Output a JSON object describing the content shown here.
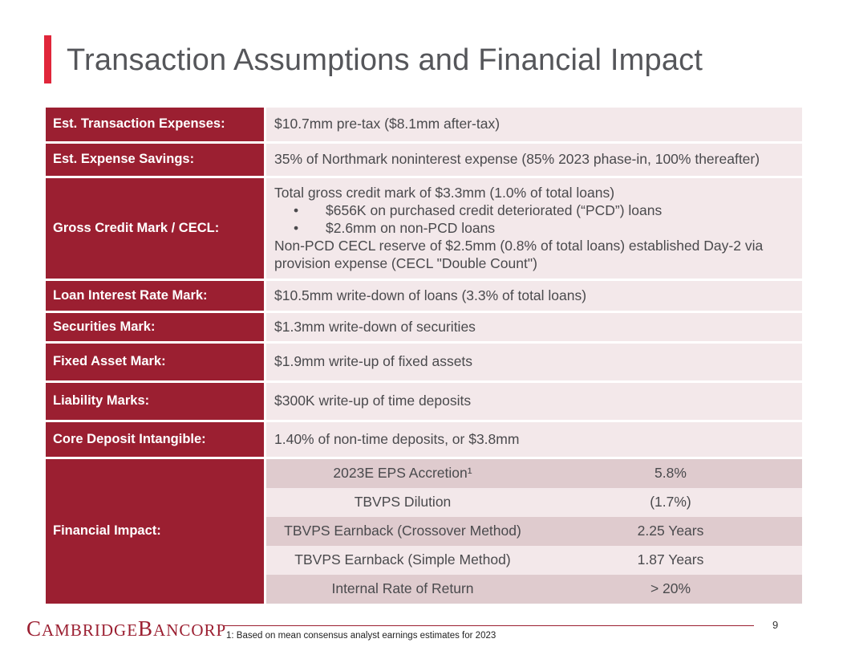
{
  "slide": {
    "title": "Transaction Assumptions and Financial Impact",
    "page_number": "9",
    "footnote": "1: Based on mean consensus analyst earnings estimates for 2023"
  },
  "logo": {
    "cambridge_initial": "C",
    "cambridge_rest": "AMBRIDGE",
    "bancorp_initial": "B",
    "bancorp_rest": "ANCORP"
  },
  "rows": {
    "transaction_expenses": {
      "label": "Est. Transaction Expenses:",
      "value": "$10.7mm pre-tax ($8.1mm after-tax)"
    },
    "expense_savings": {
      "label": "Est. Expense Savings:",
      "value": "35% of Northmark noninterest expense (85% 2023 phase-in, 100% thereafter)"
    },
    "credit_mark": {
      "label": "Gross Credit Mark / CECL:",
      "line1": "Total gross credit mark of $3.3mm (1.0% of total loans)",
      "bullet_char": "•",
      "bullet1": "$656K on purchased credit deteriorated (“PCD”) loans",
      "bullet2": "$2.6mm on non-PCD loans",
      "line2": "Non-PCD CECL reserve of $2.5mm (0.8% of total loans) established Day-2 via provision expense (CECL \"Double Count\")"
    },
    "loan_interest_rate_mark": {
      "label": "Loan Interest Rate Mark:",
      "value": "$10.5mm write-down of loans (3.3% of total loans)"
    },
    "securities_mark": {
      "label": "Securities Mark:",
      "value": "$1.3mm write-down of securities"
    },
    "fixed_asset_mark": {
      "label": "Fixed Asset Mark:",
      "value": "$1.9mm write-up of fixed assets"
    },
    "liability_marks": {
      "label": "Liability Marks:",
      "value": "$300K write-up of time deposits"
    },
    "core_deposit_intangible": {
      "label": "Core Deposit Intangible:",
      "value": "1.40% of non-time deposits, or $3.8mm"
    },
    "financial_impact": {
      "label": "Financial Impact:",
      "metrics": [
        {
          "metric": "2023E EPS Accretion¹",
          "value": "5.8%"
        },
        {
          "metric": "TBVPS Dilution",
          "value": "(1.7%)"
        },
        {
          "metric": "TBVPS Earnback (Crossover Method)",
          "value": "2.25 Years"
        },
        {
          "metric": "TBVPS Earnback  (Simple Method)",
          "value": "1.87 Years"
        },
        {
          "metric": "Internal Rate of Return",
          "value": "> 20%"
        }
      ]
    }
  },
  "colors": {
    "accent_red": "#e0263a",
    "label_bg": "#9b1f31",
    "value_bg": "#f3e8ea",
    "value_bg_dark": "#dfcbce"
  }
}
